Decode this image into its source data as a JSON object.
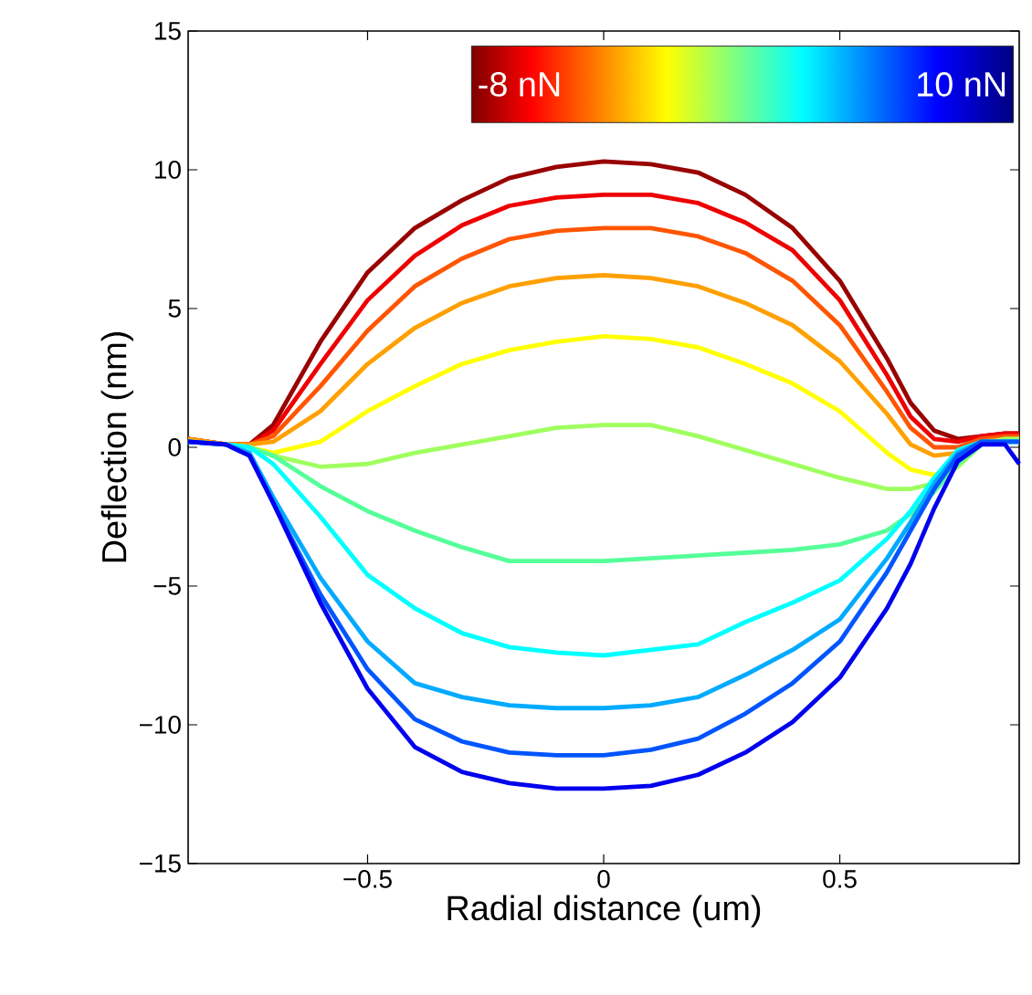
{
  "chart_data": {
    "type": "line",
    "xlabel": "Radial distance (um)",
    "ylabel": "Deflection (nm)",
    "x": [
      -0.88,
      -0.8,
      -0.75,
      -0.7,
      -0.6,
      -0.5,
      -0.4,
      -0.3,
      -0.2,
      -0.1,
      0,
      0.1,
      0.2,
      0.3,
      0.4,
      0.5,
      0.6,
      0.65,
      0.7,
      0.75,
      0.8,
      0.85,
      0.88
    ],
    "series": [
      {
        "color": "#990000",
        "values": [
          0.3,
          0.1,
          0.1,
          0.8,
          3.8,
          6.3,
          7.9,
          8.9,
          9.7,
          10.1,
          10.3,
          10.2,
          9.9,
          9.1,
          7.9,
          6.0,
          3.2,
          1.6,
          0.6,
          0.3,
          0.4,
          0.5,
          0.5
        ]
      },
      {
        "color": "#ee0000",
        "values": [
          0.3,
          0.1,
          0.1,
          0.6,
          3.0,
          5.3,
          6.9,
          8.0,
          8.7,
          9.0,
          9.1,
          9.1,
          8.8,
          8.1,
          7.1,
          5.3,
          2.6,
          1.1,
          0.3,
          0.2,
          0.4,
          0.5,
          0.5
        ]
      },
      {
        "color": "#ff5500",
        "values": [
          0.3,
          0.1,
          0.1,
          0.4,
          2.2,
          4.2,
          5.8,
          6.8,
          7.5,
          7.8,
          7.9,
          7.9,
          7.6,
          7.0,
          6.0,
          4.4,
          2.0,
          0.7,
          0.0,
          0.0,
          0.3,
          0.4,
          0.4
        ]
      },
      {
        "color": "#ffa000",
        "values": [
          0.3,
          0.1,
          0.1,
          0.2,
          1.3,
          3.0,
          4.3,
          5.2,
          5.8,
          6.1,
          6.2,
          6.1,
          5.8,
          5.2,
          4.4,
          3.1,
          1.2,
          0.1,
          -0.3,
          -0.2,
          0.2,
          0.3,
          0.3
        ]
      },
      {
        "color": "#ffff00",
        "values": [
          0.2,
          0.1,
          0,
          -0.2,
          0.2,
          1.3,
          2.2,
          3.0,
          3.5,
          3.8,
          4.0,
          3.9,
          3.6,
          3.0,
          2.3,
          1.3,
          -0.2,
          -0.8,
          -1.0,
          -0.6,
          null,
          null,
          null
        ]
      },
      {
        "color": "#a0ff60",
        "values": [
          0.2,
          0.1,
          0,
          -0.3,
          -0.7,
          -0.6,
          -0.2,
          0.1,
          0.4,
          0.7,
          0.8,
          0.8,
          0.4,
          -0.1,
          -0.6,
          -1.1,
          -1.5,
          -1.5,
          -1.3,
          -0.7,
          0.1,
          0.3,
          0.3
        ]
      },
      {
        "color": "#55ff99",
        "values": [
          0.2,
          0.1,
          0,
          -0.3,
          -1.4,
          -2.3,
          -3.0,
          -3.6,
          -4.1,
          -4.1,
          -4.1,
          -4.0,
          -3.9,
          -3.8,
          -3.7,
          -3.5,
          -3.0,
          -2.4,
          -1.6,
          -0.6,
          0.1,
          0.2,
          0.2
        ]
      },
      {
        "color": "#00ffff",
        "values": [
          0.2,
          0.1,
          0,
          -0.6,
          -2.5,
          -4.6,
          -5.8,
          -6.7,
          -7.2,
          -7.4,
          -7.5,
          -7.3,
          -7.1,
          -6.3,
          -5.6,
          -4.8,
          -3.3,
          -2.3,
          -1.1,
          -0.1,
          0.2,
          0.2,
          0.2
        ]
      },
      {
        "color": "#00aaff",
        "values": [
          0.2,
          0.1,
          -0.2,
          -1.8,
          -4.7,
          -7.0,
          -8.5,
          -9.0,
          -9.3,
          -9.4,
          -9.4,
          -9.3,
          -9.0,
          -8.2,
          -7.3,
          -6.2,
          -4.0,
          -2.7,
          -1.3,
          -0.2,
          0.2,
          0.2,
          0.2
        ]
      },
      {
        "color": "#0055ff",
        "values": [
          0.2,
          0.1,
          -0.3,
          -2.0,
          -5.3,
          -8.0,
          -9.8,
          -10.6,
          -11.0,
          -11.1,
          -11.1,
          -10.9,
          -10.5,
          -9.6,
          -8.5,
          -7.0,
          -4.5,
          -3.0,
          -1.5,
          -0.3,
          0.2,
          0.2,
          0.2
        ]
      },
      {
        "color": "#0000ee",
        "values": [
          0.2,
          0.1,
          -0.3,
          -2.0,
          -5.6,
          -8.7,
          -10.8,
          -11.7,
          -12.1,
          -12.3,
          -12.3,
          -12.2,
          -11.8,
          -11.0,
          -9.9,
          -8.3,
          -5.8,
          -4.2,
          -2.2,
          -0.5,
          0.1,
          0.1,
          -0.6
        ]
      }
    ],
    "xlim": [
      -0.88,
      0.88
    ],
    "xticks": [
      {
        "value": -0.5,
        "label": "−0.5"
      },
      0,
      0.5
    ],
    "ylim": [
      -15,
      15
    ],
    "yticks": [
      {
        "value": -15,
        "label": "−15"
      },
      {
        "value": -10,
        "label": "−10"
      },
      {
        "value": -5,
        "label": "−5"
      },
      0,
      5,
      10,
      15
    ],
    "annotations": [
      "-8 nN",
      "10 nN"
    ],
    "grid": false,
    "marker": "none",
    "line_style": "solid"
  }
}
